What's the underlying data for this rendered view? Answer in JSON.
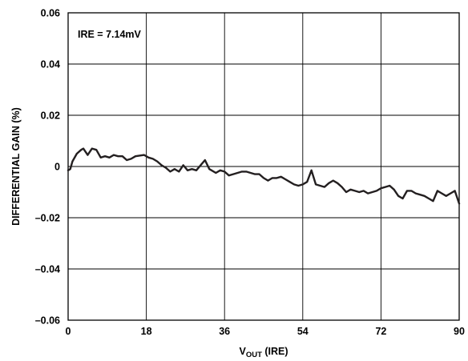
{
  "chart_data": {
    "type": "line",
    "annotation": "IRE = 7.14mV",
    "xlabel": {
      "main": "V",
      "sub": "OUT",
      "suffix": " (IRE)"
    },
    "ylabel": "DIFFERENTIAL GAIN (%)",
    "xlim": [
      0,
      90
    ],
    "ylim": [
      -0.06,
      0.06
    ],
    "x_ticks": [
      0,
      18,
      36,
      54,
      72,
      90
    ],
    "x_tick_labels": [
      "0",
      "18",
      "36",
      "54",
      "72",
      "90"
    ],
    "y_ticks": [
      0.06,
      0.04,
      0.02,
      0,
      -0.02,
      -0.04,
      -0.06
    ],
    "y_tick_labels": [
      "0.06",
      "0.04",
      "0.02",
      "0",
      "–0.02",
      "–0.04",
      "–0.06"
    ],
    "grid": true,
    "colors": {
      "line": "#231f20",
      "grid": "#000000"
    },
    "series": [
      {
        "x": [
          0,
          0.5,
          1,
          2,
          3,
          3.5,
          4.5,
          5.5,
          6.5,
          7.5,
          8.5,
          9.5,
          10.5,
          11.5,
          12.5,
          13.5,
          14.5,
          15.5,
          17.5,
          18.5,
          19.5,
          20.5,
          21.5,
          22.5,
          23.5,
          24.5,
          25.5,
          26.5,
          27.5,
          28.5,
          29.5,
          31.5,
          32.5,
          34,
          35,
          36,
          37,
          38,
          39,
          40,
          41,
          42,
          43,
          44,
          45,
          46,
          47,
          48,
          49,
          50,
          51,
          52,
          53,
          54,
          55,
          56,
          57,
          58,
          59,
          60,
          61,
          62,
          63,
          64,
          65,
          66,
          67,
          68,
          69,
          70,
          71,
          72,
          73,
          74,
          75,
          76,
          77,
          78,
          79,
          80,
          81,
          82,
          83,
          84,
          85,
          86,
          87,
          88,
          89,
          90
        ],
        "y": [
          -0.0015,
          -0.001,
          0.002,
          0.005,
          0.0065,
          0.007,
          0.0045,
          0.007,
          0.0065,
          0.0035,
          0.004,
          0.0035,
          0.0045,
          0.004,
          0.004,
          0.0025,
          0.003,
          0.004,
          0.0045,
          0.0035,
          0.003,
          0.002,
          0.0005,
          -0.0005,
          -0.002,
          -0.001,
          -0.002,
          0.0005,
          -0.0015,
          -0.001,
          -0.0015,
          0.0025,
          -0.001,
          -0.0025,
          -0.0015,
          -0.002,
          -0.0035,
          -0.003,
          -0.0025,
          -0.002,
          -0.002,
          -0.0025,
          -0.003,
          -0.003,
          -0.0045,
          -0.0055,
          -0.0045,
          -0.0045,
          -0.004,
          -0.005,
          -0.006,
          -0.007,
          -0.0075,
          -0.007,
          -0.006,
          -0.0015,
          -0.007,
          -0.0075,
          -0.008,
          -0.0065,
          -0.0055,
          -0.0065,
          -0.008,
          -0.01,
          -0.009,
          -0.0095,
          -0.01,
          -0.0095,
          -0.0105,
          -0.01,
          -0.0095,
          -0.0085,
          -0.008,
          -0.0075,
          -0.009,
          -0.0115,
          -0.0125,
          -0.0095,
          -0.0095,
          -0.0105,
          -0.011,
          -0.0115,
          -0.0125,
          -0.0135,
          -0.0095,
          -0.0105,
          -0.0115,
          -0.0105,
          -0.0095,
          -0.0145
        ]
      }
    ]
  }
}
